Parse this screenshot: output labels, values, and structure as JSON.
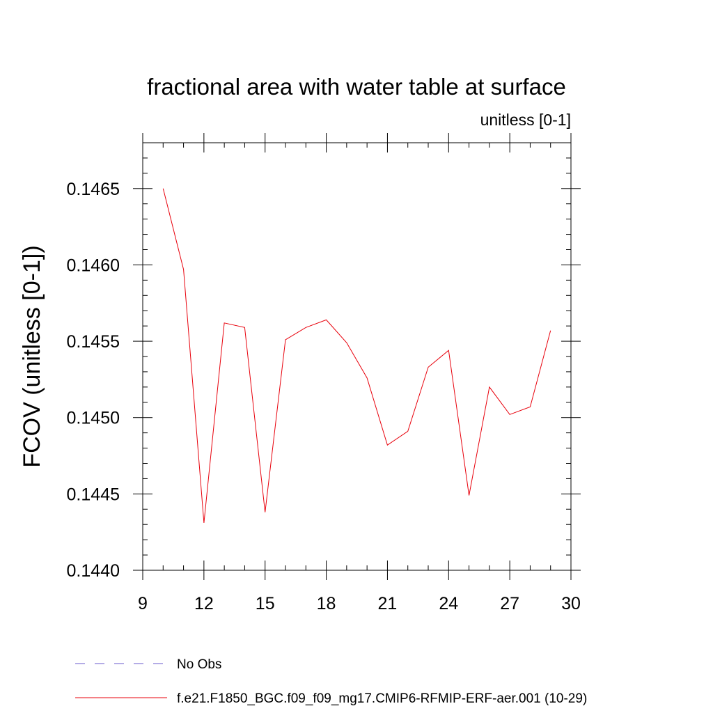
{
  "chart_data": {
    "type": "line",
    "title": "fractional area with water table at surface",
    "units_label": "unitless [0-1]",
    "ylabel": "FCOV  (unitless [0-1])",
    "xlabel": "",
    "xlim": [
      9,
      30
    ],
    "ylim": [
      0.144,
      0.1468
    ],
    "x_ticks": [
      9,
      12,
      15,
      18,
      21,
      24,
      27,
      30
    ],
    "x_tick_labels": [
      "9",
      "12",
      "15",
      "18",
      "21",
      "24",
      "27",
      "30"
    ],
    "y_ticks": [
      0.144,
      0.1445,
      0.145,
      0.1455,
      0.146,
      0.1465
    ],
    "y_tick_labels": [
      "0.1440",
      "0.1445",
      "0.1450",
      "0.1455",
      "0.1460",
      "0.1465"
    ],
    "grid": false,
    "legend_position": "bottom",
    "series": [
      {
        "name": "No Obs",
        "color": "#6a5acd",
        "dash": "dashed",
        "x": [],
        "y": []
      },
      {
        "name": "f.e21.F1850_BGC.f09_f09_mg17.CMIP6-RFMIP-ERF-aer.001 (10-29)",
        "color": "#e8000b",
        "dash": "solid",
        "x": [
          10,
          11,
          12,
          13,
          14,
          15,
          16,
          17,
          18,
          19,
          20,
          21,
          22,
          23,
          24,
          25,
          26,
          27,
          28,
          29
        ],
        "y": [
          0.1465,
          0.14597,
          0.14431,
          0.14562,
          0.14559,
          0.14438,
          0.14551,
          0.14559,
          0.14564,
          0.14549,
          0.14526,
          0.14482,
          0.14491,
          0.14533,
          0.14544,
          0.14449,
          0.1452,
          0.14502,
          0.14507,
          0.14557
        ]
      }
    ]
  }
}
